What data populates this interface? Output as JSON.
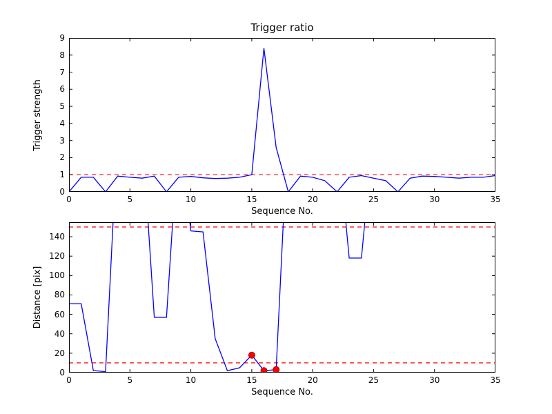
{
  "figure": {
    "background": "#ffffff",
    "line_color": "#0000ff",
    "threshold_color": "#ff0000",
    "axis_color": "#000000"
  },
  "chart_data": [
    {
      "type": "line",
      "title": "Trigger ratio",
      "xlabel": "Sequence No.",
      "ylabel": "Trigger strength",
      "xlim": [
        0,
        35
      ],
      "ylim": [
        0,
        9
      ],
      "xticks": [
        0,
        5,
        10,
        15,
        20,
        25,
        30,
        35
      ],
      "yticks": [
        0,
        1,
        2,
        3,
        4,
        5,
        6,
        7,
        8,
        9
      ],
      "grid": false,
      "legend": "none",
      "line_color": "#0000ff",
      "x": [
        0,
        1,
        2,
        3,
        4,
        5,
        6,
        7,
        8,
        9,
        10,
        11,
        12,
        13,
        14,
        15,
        16,
        17,
        18,
        19,
        20,
        21,
        22,
        23,
        24,
        25,
        26,
        27,
        28,
        29,
        30,
        31,
        32,
        33,
        34,
        35
      ],
      "y": [
        0,
        0.85,
        0.85,
        0,
        0.92,
        0.85,
        0.8,
        0.92,
        0,
        0.85,
        0.9,
        0.82,
        0.78,
        0.8,
        0.85,
        1.0,
        8.4,
        2.6,
        0,
        0.92,
        0.85,
        0.65,
        0,
        0.85,
        0.95,
        0.8,
        0.65,
        0,
        0.8,
        0.92,
        0.9,
        0.85,
        0.8,
        0.85,
        0.85,
        0.95
      ],
      "hlines": [
        {
          "y": 1,
          "color": "#ff0000",
          "style": "dashed"
        }
      ],
      "markers": [],
      "marker_color": "#ff0000"
    },
    {
      "type": "line",
      "title": "",
      "xlabel": "Sequence No.",
      "ylabel": "Distance [pix]",
      "xlim": [
        0,
        35
      ],
      "ylim": [
        0,
        155
      ],
      "xticks": [
        0,
        5,
        10,
        15,
        20,
        25,
        30,
        35
      ],
      "yticks": [
        0,
        20,
        40,
        60,
        80,
        100,
        120,
        140
      ],
      "grid": false,
      "legend": "none",
      "line_color": "#0000ff",
      "x": [
        0,
        1,
        2,
        3,
        4,
        5,
        6,
        7,
        8,
        9,
        10,
        11,
        12,
        13,
        14,
        15,
        16,
        17,
        18,
        19,
        20,
        21,
        22,
        23,
        24,
        25,
        26,
        27,
        28,
        29,
        30,
        31,
        32,
        33,
        34,
        35
      ],
      "y": [
        71,
        71,
        2,
        1,
        250,
        320,
        250,
        57,
        57,
        250,
        146,
        145,
        35,
        2,
        5,
        18,
        2,
        3,
        260,
        320,
        320,
        320,
        250,
        118,
        118,
        250,
        320,
        320,
        320,
        320,
        320,
        320,
        320,
        320,
        320,
        320
      ],
      "hlines": [
        {
          "y": 150,
          "color": "#ff0000",
          "style": "dashed"
        },
        {
          "y": 10,
          "color": "#ff0000",
          "style": "dashed"
        }
      ],
      "markers": [
        {
          "x": 15,
          "y": 18
        },
        {
          "x": 16,
          "y": 2
        },
        {
          "x": 17,
          "y": 3
        }
      ],
      "marker_color": "#ff0000"
    }
  ]
}
